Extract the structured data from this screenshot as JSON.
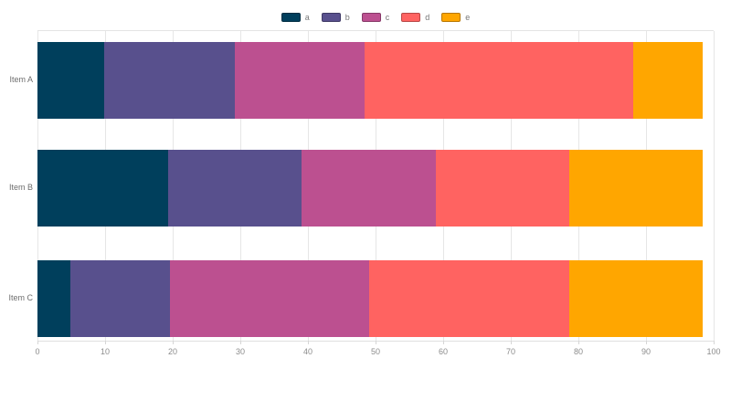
{
  "chart_data": {
    "type": "bar",
    "orientation": "horizontal",
    "stacked": true,
    "title": "",
    "xlabel": "",
    "ylabel": "",
    "grid": true,
    "legend_position": "top-center",
    "categories": [
      "Item A",
      "Item B",
      "Item C"
    ],
    "series": [
      {
        "name": "a",
        "color": "#003f5c",
        "values": [
          9.8,
          19.3,
          4.8
        ]
      },
      {
        "name": "b",
        "color": "#58508d",
        "values": [
          19.4,
          19.8,
          14.8
        ]
      },
      {
        "name": "c",
        "color": "#bc5090",
        "values": [
          19.2,
          19.8,
          29.4
        ]
      },
      {
        "name": "d",
        "color": "#ff6361",
        "values": [
          39.7,
          19.7,
          29.6
        ]
      },
      {
        "name": "e",
        "color": "#ffa600",
        "values": [
          10.3,
          19.8,
          19.8
        ]
      }
    ],
    "xlim": [
      0,
      100
    ],
    "xticks": [
      0,
      10,
      20,
      30,
      40,
      50,
      60,
      70,
      80,
      90,
      100
    ]
  },
  "styles": {
    "background": "#ffffff",
    "grid_color": "#e6e6e6",
    "tick_mark_color": "#d6d6d6",
    "tick_label_color": "#8c8c8c",
    "category_label_color": "#6e6e6e",
    "legend_label_color": "#777777"
  }
}
